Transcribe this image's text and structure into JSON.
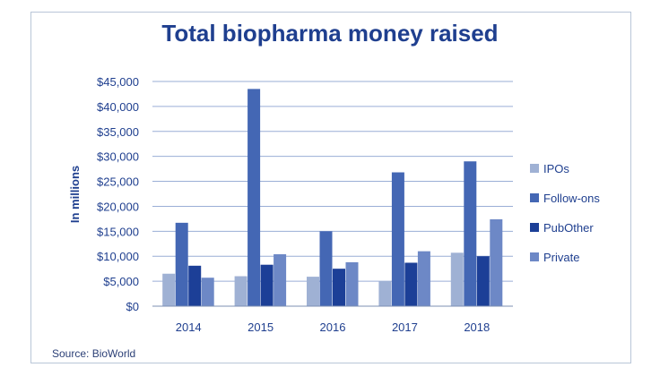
{
  "chart_data": {
    "type": "bar",
    "title": "Total biopharma money raised",
    "ylabel": "In millions",
    "xlabel": "",
    "categories": [
      "2014",
      "2015",
      "2016",
      "2017",
      "2018"
    ],
    "series": [
      {
        "name": "IPOs",
        "values": [
          6500,
          6000,
          5900,
          5000,
          10700
        ],
        "color": "#9fb1d4"
      },
      {
        "name": "Follow-ons",
        "values": [
          16700,
          43500,
          15000,
          26800,
          29000
        ],
        "color": "#4467b4"
      },
      {
        "name": "PubOther",
        "values": [
          8100,
          8300,
          7500,
          8700,
          10000
        ],
        "color": "#1c3f97"
      },
      {
        "name": "Private",
        "values": [
          5700,
          10400,
          8800,
          11000,
          17400
        ],
        "color": "#6d88c6"
      }
    ],
    "ylim": [
      0,
      45000
    ],
    "yticks": [
      "$0",
      "$5,000",
      "$10,000",
      "$15,000",
      "$20,000",
      "$25,000",
      "$30,000",
      "$35,000",
      "$40,000",
      "$45,000"
    ],
    "ytick_values": [
      0,
      5000,
      10000,
      15000,
      20000,
      25000,
      30000,
      35000,
      40000,
      45000
    ],
    "grid": true,
    "legend": "right",
    "source": "Source: BioWorld"
  }
}
